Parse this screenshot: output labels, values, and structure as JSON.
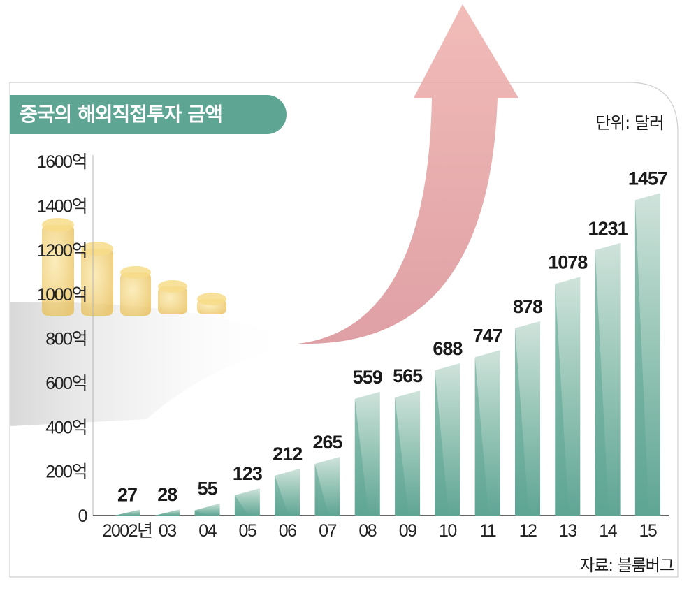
{
  "chart_data": {
    "type": "bar",
    "title": "중국의 해외직접투자 금액",
    "unit_label": "단위: 달러",
    "source": "자료: 블룸버그",
    "categories": [
      "2002년",
      "03",
      "04",
      "05",
      "06",
      "07",
      "08",
      "09",
      "10",
      "11",
      "12",
      "13",
      "14",
      "15"
    ],
    "values": [
      27,
      28,
      55,
      123,
      212,
      265,
      559,
      565,
      688,
      747,
      878,
      1078,
      1231,
      1457
    ],
    "value_labels": [
      "27",
      "28",
      "55",
      "123",
      "212",
      "265",
      "559",
      "565",
      "688",
      "747",
      "878",
      "1078",
      "1231",
      "1457"
    ],
    "y_ticks": [
      0,
      200,
      400,
      600,
      800,
      1000,
      1200,
      1400,
      1600
    ],
    "y_tick_labels": [
      "0",
      "200억",
      "400억",
      "600억",
      "800억",
      "1000억",
      "1200억",
      "1400억",
      "1600억"
    ],
    "ylim": [
      0,
      1600
    ],
    "xlabel": "",
    "ylabel": "",
    "colors": {
      "bar_dark": "#5fa594",
      "bar_light": "#c5dcd4",
      "title_bg": "#5fa594",
      "arrow": "#e8a0a0",
      "coin": "#f3d27a"
    }
  }
}
